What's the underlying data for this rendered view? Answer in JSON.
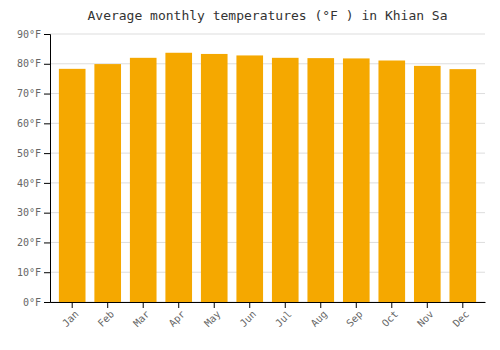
{
  "chart_data": {
    "type": "bar",
    "title": "Average monthly temperatures (°F ) in Khian Sa",
    "categories": [
      "Jan",
      "Feb",
      "Mar",
      "Apr",
      "May",
      "Jun",
      "Jul",
      "Aug",
      "Sep",
      "Oct",
      "Nov",
      "Dec"
    ],
    "values": [
      78.3,
      79.9,
      82.0,
      83.7,
      83.3,
      82.8,
      82.0,
      81.9,
      81.8,
      81.1,
      79.3,
      78.2
    ],
    "color": "#F5A800",
    "ylim": [
      0,
      90
    ],
    "yticks": [
      {
        "value": 0,
        "label": "0°F"
      },
      {
        "value": 10,
        "label": "10°F"
      },
      {
        "value": 20,
        "label": "20°F"
      },
      {
        "value": 30,
        "label": "30°F"
      },
      {
        "value": 40,
        "label": "40°F"
      },
      {
        "value": 50,
        "label": "50°F"
      },
      {
        "value": 60,
        "label": "60°F"
      },
      {
        "value": 70,
        "label": "70°F"
      },
      {
        "value": 80,
        "label": "80°F"
      },
      {
        "value": 90,
        "label": "90°F"
      }
    ],
    "grid": true
  }
}
